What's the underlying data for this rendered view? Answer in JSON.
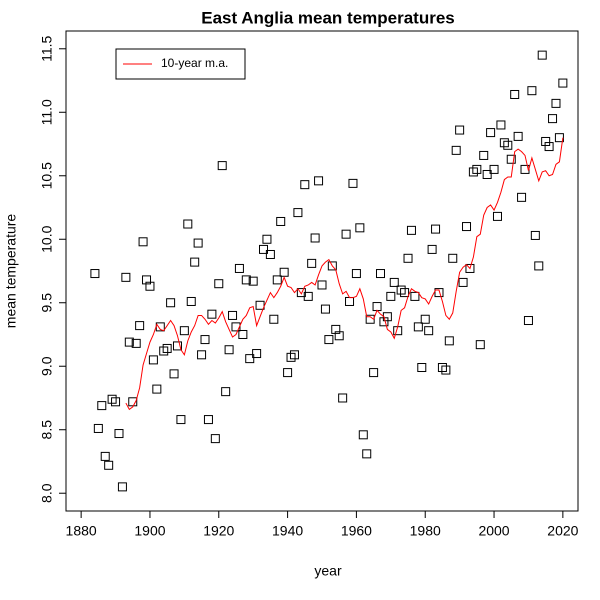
{
  "chart_data": {
    "type": "scatter",
    "title": "East Anglia mean temperatures",
    "xlabel": "year",
    "ylabel": "mean temperature",
    "xlim": [
      1875.6,
      2024.4
    ],
    "ylim": [
      7.86,
      11.64
    ],
    "xticks": [
      1880,
      1900,
      1920,
      1940,
      1960,
      1980,
      2000,
      2020
    ],
    "yticks": [
      {
        "value": 8,
        "label": "8.0"
      },
      8.5,
      {
        "value": 9,
        "label": "9.0"
      },
      9.5,
      {
        "value": 10,
        "label": "10.0"
      },
      10.5,
      {
        "value": 11,
        "label": "11.0"
      },
      11.5
    ],
    "legend": "topleft",
    "x": [
      1884,
      1885,
      1886,
      1887,
      1888,
      1889,
      1890,
      1891,
      1892,
      1893,
      1894,
      1895,
      1896,
      1897,
      1898,
      1899,
      1900,
      1901,
      1902,
      1903,
      1904,
      1905,
      1906,
      1907,
      1908,
      1909,
      1910,
      1911,
      1912,
      1913,
      1914,
      1915,
      1916,
      1917,
      1918,
      1919,
      1920,
      1921,
      1922,
      1923,
      1924,
      1925,
      1926,
      1927,
      1928,
      1929,
      1930,
      1931,
      1932,
      1933,
      1934,
      1935,
      1936,
      1937,
      1938,
      1939,
      1940,
      1941,
      1942,
      1943,
      1944,
      1945,
      1946,
      1947,
      1948,
      1949,
      1950,
      1951,
      1952,
      1953,
      1954,
      1955,
      1956,
      1957,
      1958,
      1959,
      1960,
      1961,
      1962,
      1963,
      1964,
      1965,
      1966,
      1967,
      1968,
      1969,
      1970,
      1971,
      1972,
      1973,
      1974,
      1975,
      1976,
      1977,
      1978,
      1979,
      1980,
      1981,
      1982,
      1983,
      1984,
      1985,
      1986,
      1987,
      1988,
      1989,
      1990,
      1991,
      1992,
      1993,
      1994,
      1995,
      1996,
      1997,
      1998,
      1999,
      2000,
      2001,
      2002,
      2003,
      2004,
      2005,
      2006,
      2007,
      2008,
      2009,
      2010,
      2011,
      2012,
      2013,
      2014,
      2015,
      2016,
      2017,
      2018,
      2019,
      2020
    ],
    "series": [
      {
        "type": "scatter",
        "marker": "square",
        "color": "#000000",
        "values": [
          9.73,
          8.51,
          8.69,
          8.29,
          8.22,
          8.74,
          8.72,
          8.47,
          8.05,
          9.7,
          9.19,
          8.72,
          9.18,
          9.32,
          9.98,
          9.68,
          9.63,
          9.05,
          8.82,
          9.31,
          9.12,
          9.14,
          9.5,
          8.94,
          9.16,
          8.58,
          9.28,
          10.12,
          9.51,
          9.82,
          9.97,
          9.09,
          9.21,
          8.58,
          9.41,
          8.43,
          9.65,
          10.58,
          8.8,
          9.13,
          9.4,
          9.31,
          9.77,
          9.25,
          9.68,
          9.06,
          9.67,
          9.1,
          9.48,
          9.92,
          10.0,
          9.88,
          9.37,
          9.68,
          10.14,
          9.74,
          8.95,
          9.07,
          9.09,
          10.21,
          9.58,
          10.43,
          9.55,
          9.81,
          10.01,
          10.46,
          9.64,
          9.45,
          9.21,
          9.79,
          9.29,
          9.24,
          8.75,
          10.04,
          9.51,
          10.44,
          9.73,
          10.09,
          8.46,
          8.31,
          9.37,
          8.95,
          9.47,
          9.73,
          9.35,
          9.39,
          9.55,
          9.66,
          9.28,
          9.6,
          9.58,
          9.85,
          10.07,
          9.55,
          9.31,
          8.99,
          9.37,
          9.28,
          9.92,
          10.08,
          9.58,
          8.99,
          8.97,
          9.2,
          9.85,
          10.7,
          10.86,
          9.66,
          10.1,
          9.77,
          10.53,
          10.55,
          9.17,
          10.66,
          10.51,
          10.84,
          10.55,
          10.18,
          10.9,
          10.76,
          10.74,
          10.63,
          11.14,
          10.81,
          10.33,
          10.55,
          9.36,
          11.17,
          10.03,
          9.79,
          11.45,
          10.77,
          10.73,
          10.95,
          11.07,
          10.8,
          11.23
        ]
      },
      {
        "type": "line",
        "name": "10-year m.a.",
        "color": "#ff0000",
        "values": [
          null,
          null,
          null,
          null,
          null,
          null,
          null,
          null,
          null,
          8.71,
          8.66,
          8.68,
          8.73,
          8.83,
          9.01,
          9.1,
          9.19,
          9.25,
          9.33,
          9.29,
          9.28,
          9.32,
          9.36,
          9.32,
          9.24,
          9.13,
          9.09,
          9.2,
          9.27,
          9.32,
          9.4,
          9.4,
          9.37,
          9.33,
          9.36,
          9.34,
          9.38,
          9.43,
          9.35,
          9.29,
          9.23,
          9.25,
          9.31,
          9.37,
          9.4,
          9.46,
          9.47,
          9.32,
          9.39,
          9.46,
          9.52,
          9.58,
          9.54,
          9.58,
          9.63,
          9.7,
          9.63,
          9.62,
          9.58,
          9.61,
          9.57,
          9.63,
          9.64,
          9.66,
          9.64,
          9.72,
          9.79,
          9.82,
          9.84,
          9.79,
          9.76,
          9.65,
          9.57,
          9.59,
          9.54,
          9.54,
          9.55,
          9.61,
          9.53,
          9.39,
          9.39,
          9.37,
          9.44,
          9.41,
          9.39,
          9.29,
          9.27,
          9.22,
          9.31,
          9.44,
          9.46,
          9.55,
          9.61,
          9.59,
          9.58,
          9.54,
          9.53,
          9.49,
          9.55,
          9.6,
          9.6,
          9.51,
          9.4,
          9.37,
          9.42,
          9.59,
          9.74,
          9.78,
          9.8,
          9.77,
          9.86,
          10.02,
          10.04,
          10.19,
          10.25,
          10.27,
          10.23,
          10.29,
          10.37,
          10.47,
          10.49,
          10.49,
          10.69,
          10.71,
          10.69,
          10.66,
          10.54,
          10.64,
          10.55,
          10.46,
          10.53,
          10.54,
          10.5,
          10.51,
          10.59,
          10.61,
          10.8
        ]
      }
    ]
  }
}
